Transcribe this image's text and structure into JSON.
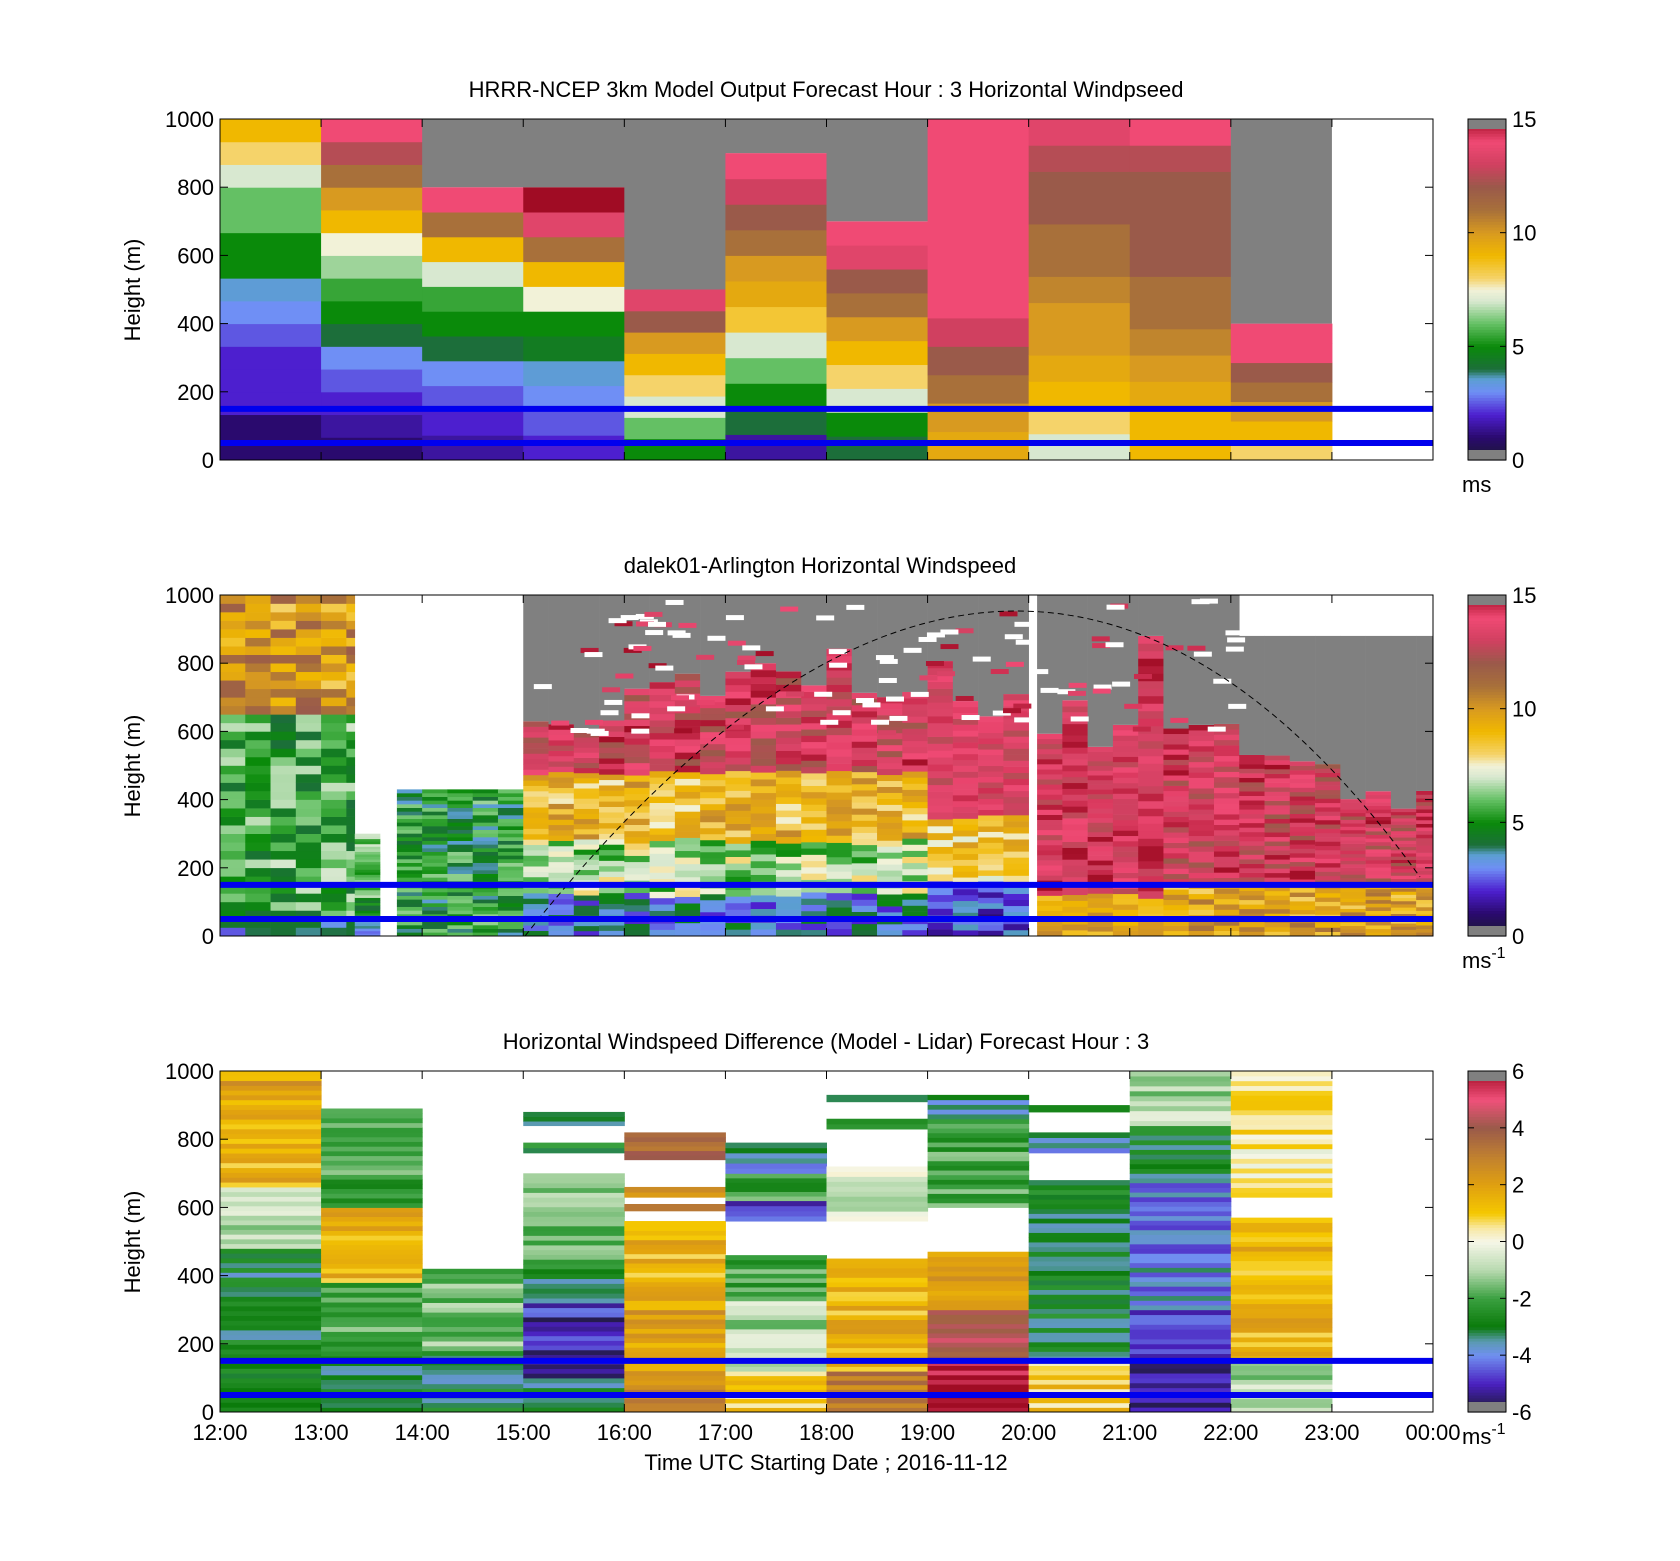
{
  "figure": {
    "xlabel": "Time UTC  Starting Date ; 2016-11-12",
    "xticks": [
      "12:00",
      "13:00",
      "14:00",
      "15:00",
      "16:00",
      "17:00",
      "18:00",
      "19:00",
      "20:00",
      "21:00",
      "22:00",
      "23:00",
      "00:00"
    ]
  },
  "chart_data": [
    {
      "type": "heatmap",
      "title": "HRRR-NCEP 3km Model Output   Forecast Hour : 3 Horizontal Windpseed",
      "ylabel": "Height (m)",
      "yticks": [
        "0",
        "200",
        "400",
        "600",
        "800",
        "1000"
      ],
      "ylim": [
        0,
        1000
      ],
      "x_range": [
        "12:00",
        "00:00"
      ],
      "colorbar": {
        "min": 0,
        "max": 15,
        "ticks": [
          "0",
          "5",
          "10",
          "15"
        ],
        "unit": "ms",
        "unit_sup": ""
      },
      "reference_lines_m": [
        50,
        150
      ],
      "hourly_columns": [
        {
          "start": "12:00",
          "top_m": 1000,
          "speed_bottom_to_top": [
            1,
            1,
            2,
            2,
            2,
            2.5,
            3,
            3.5,
            5,
            5,
            6,
            6,
            7,
            8,
            9
          ],
          "missing_above_m": null
        },
        {
          "start": "13:00",
          "top_m": 1000,
          "speed_bottom_to_top": [
            1,
            1.5,
            2,
            2.5,
            3,
            4,
            5,
            5.5,
            6.5,
            7.5,
            9,
            10,
            11,
            12.5,
            14
          ],
          "missing_above_m": null
        },
        {
          "start": "14:00",
          "top_m": 1000,
          "speed_bottom_to_top": [
            1.5,
            2,
            2.5,
            3,
            4,
            5,
            5.5,
            7,
            9,
            11,
            14
          ],
          "missing_above_m": 800
        },
        {
          "start": "15:00",
          "top_m": 1000,
          "speed_bottom_to_top": [
            2,
            2.5,
            3,
            3.5,
            4.5,
            5,
            7.5,
            9,
            11,
            13.5,
            15
          ],
          "missing_above_m": 800
        },
        {
          "start": "16:00",
          "top_m": 1000,
          "speed_bottom_to_top": [
            5,
            6,
            7,
            8,
            9,
            10,
            12,
            13.5
          ],
          "missing_above_m": 500
        },
        {
          "start": "17:00",
          "top_m": 1000,
          "speed_bottom_to_top": [
            1.5,
            4,
            5,
            6,
            7,
            8.5,
            9.5,
            10,
            11,
            12,
            13,
            14
          ],
          "missing_above_m": 900
        },
        {
          "start": "18:00",
          "top_m": 1000,
          "speed_bottom_to_top": [
            4,
            5,
            7,
            8,
            9,
            10,
            11,
            12,
            13.5,
            14
          ],
          "missing_above_m": 700
        },
        {
          "start": "19:00",
          "top_m": 1000,
          "speed_bottom_to_top": [
            9.5,
            10,
            11,
            12,
            13,
            14,
            14,
            14,
            14,
            14,
            14,
            14
          ],
          "missing_above_m": null
        },
        {
          "start": "20:00",
          "top_m": 1000,
          "speed_bottom_to_top": [
            7,
            8,
            9,
            9.5,
            10,
            10,
            10.5,
            11,
            11,
            12,
            12,
            12.5,
            13.5
          ],
          "missing_above_m": null
        },
        {
          "start": "21:00",
          "top_m": 1000,
          "speed_bottom_to_top": [
            9,
            9,
            9.5,
            10,
            10.5,
            11,
            11,
            12,
            12,
            12,
            12,
            12.5,
            14
          ],
          "missing_above_m": null
        },
        {
          "start": "22:00",
          "top_m": 400,
          "speed_bottom_to_top": [
            8,
            9,
            10,
            11,
            12,
            14,
            14
          ],
          "missing_above_m": 400
        }
      ]
    },
    {
      "type": "heatmap",
      "title": "dalek01-Arlington  Horizontal Windspeed",
      "ylabel": "Height (m)",
      "yticks": [
        "0",
        "200",
        "400",
        "600",
        "800",
        "1000"
      ],
      "ylim": [
        0,
        1000
      ],
      "x_range": [
        "12:00",
        "00:00"
      ],
      "colorbar": {
        "min": 0,
        "max": 15,
        "ticks": [
          "0",
          "5",
          "10",
          "15"
        ],
        "unit": "ms",
        "unit_sup": "-1"
      },
      "reference_lines_m": [
        50,
        150
      ],
      "overlay": "dashed arc",
      "segments": [
        {
          "from": "12:00",
          "to": "13:20",
          "top_m": 1000,
          "profile": "green low, amber/pink above 650 m"
        },
        {
          "from": "13:20",
          "to": "13:35",
          "top_m": 300,
          "profile": "green"
        },
        {
          "from": "13:45",
          "to": "15:00",
          "top_m": 430,
          "profile": "green"
        },
        {
          "from": "15:00",
          "to": "19:00",
          "top_m": 1000,
          "profile": "blue/green low, amber mid, pink/red upper, grey missing aloft"
        },
        {
          "from": "19:00",
          "to": "20:00",
          "top_m": 1000,
          "profile": "blue/purple low, amber/yellow mid, pink above"
        },
        {
          "from": "20:05",
          "to": "21:05",
          "top_m": 1000,
          "profile": "amber low, pink/red columns up to 1000 m"
        },
        {
          "from": "21:05",
          "to": "00:00",
          "top_m": 880,
          "profile": "amber low, pink/red to 500 m, grey missing above"
        }
      ]
    },
    {
      "type": "heatmap",
      "title": "Horizontal Windspeed Difference (Model - Lidar) Forecast Hour : 3",
      "ylabel": "Height (m)",
      "yticks": [
        "0",
        "200",
        "400",
        "600",
        "800",
        "1000"
      ],
      "ylim": [
        0,
        1000
      ],
      "x_range": [
        "12:00",
        "00:00"
      ],
      "colorbar": {
        "min": -6,
        "max": 6,
        "ticks": [
          "-6",
          "-4",
          "-2",
          "0",
          "2",
          "4",
          "6"
        ],
        "unit": "ms",
        "unit_sup": "-1"
      },
      "reference_lines_m": [
        50,
        150
      ],
      "hourly_columns": [
        {
          "start": "12:00",
          "bands": [
            [
              0,
              100,
              -2.5
            ],
            [
              100,
              480,
              -3
            ],
            [
              480,
              660,
              -1
            ],
            [
              660,
              930,
              1.5
            ],
            [
              930,
              1000,
              2
            ]
          ]
        },
        {
          "start": "13:00",
          "bands": [
            [
              0,
              150,
              -3
            ],
            [
              150,
              380,
              -2
            ],
            [
              380,
              560,
              1.5
            ],
            [
              560,
              600,
              2
            ],
            [
              600,
              890,
              -2
            ]
          ]
        },
        {
          "start": "14:00",
          "bands": [
            [
              0,
              180,
              -3
            ],
            [
              180,
              420,
              -1.5
            ]
          ]
        },
        {
          "start": "15:00",
          "bands": [
            [
              0,
              100,
              -3
            ],
            [
              100,
              320,
              -5
            ],
            [
              320,
              420,
              -3
            ],
            [
              420,
              700,
              -1.5
            ],
            [
              760,
              790,
              -2.5
            ],
            [
              840,
              880,
              -3.5
            ]
          ]
        },
        {
          "start": "16:00",
          "bands": [
            [
              0,
              80,
              3
            ],
            [
              80,
              300,
              2
            ],
            [
              300,
              560,
              1.5
            ],
            [
              590,
              610,
              3
            ],
            [
              630,
              660,
              2.5
            ],
            [
              740,
              820,
              3.5
            ]
          ]
        },
        {
          "start": "17:00",
          "bands": [
            [
              0,
              120,
              1
            ],
            [
              120,
              340,
              -1
            ],
            [
              340,
              460,
              -2
            ],
            [
              560,
              620,
              -4.5
            ],
            [
              620,
              700,
              -2
            ],
            [
              700,
              790,
              -3.5
            ]
          ]
        },
        {
          "start": "18:00",
          "bands": [
            [
              0,
              120,
              3
            ],
            [
              120,
              450,
              1.5
            ],
            [
              560,
              720,
              -0.5
            ],
            [
              830,
              860,
              -2
            ],
            [
              910,
              930,
              -3
            ]
          ]
        },
        {
          "start": "19:00",
          "bands": [
            [
              0,
              150,
              6
            ],
            [
              150,
              300,
              4
            ],
            [
              300,
              470,
              2
            ],
            [
              600,
              860,
              -2
            ],
            [
              860,
              930,
              -3.5
            ]
          ]
        },
        {
          "start": "20:00",
          "bands": [
            [
              0,
              150,
              1
            ],
            [
              150,
              680,
              -3
            ],
            [
              760,
              820,
              -3.5
            ],
            [
              880,
              900,
              -3
            ]
          ]
        },
        {
          "start": "21:00",
          "bands": [
            [
              0,
              300,
              -5
            ],
            [
              300,
              700,
              -4
            ],
            [
              700,
              840,
              -3
            ],
            [
              840,
              1000,
              -1
            ]
          ]
        },
        {
          "start": "22:00",
          "bands": [
            [
              0,
              150,
              -1
            ],
            [
              150,
              570,
              1.5
            ],
            [
              630,
              1000,
              0.5
            ]
          ]
        }
      ]
    }
  ]
}
